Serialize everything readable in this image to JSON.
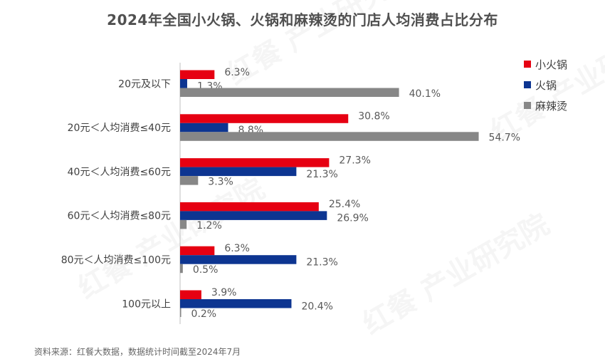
{
  "chart_data": {
    "type": "bar",
    "orientation": "horizontal",
    "title": "2024年全国小火锅、火锅和麻辣烫的门店人均消费占比分布",
    "categories": [
      "20元及以下",
      "20元＜人均消费≤40元",
      "40元＜人均消费≤60元",
      "60元＜人均消费≤80元",
      "80元＜人均消费≤100元",
      "100元以上"
    ],
    "series": [
      {
        "name": "小火锅",
        "color": "#E60012",
        "values": [
          6.3,
          30.8,
          27.3,
          25.4,
          6.3,
          3.9
        ]
      },
      {
        "name": "火锅",
        "color": "#0D3591",
        "values": [
          1.3,
          8.8,
          21.3,
          26.9,
          21.3,
          20.4
        ]
      },
      {
        "name": "麻辣烫",
        "color": "#878787",
        "values": [
          40.1,
          54.7,
          3.3,
          1.2,
          0.5,
          0.2
        ]
      }
    ],
    "value_suffix": "%",
    "xlim": [
      0,
      60
    ],
    "grid": false,
    "legend_position": "top-right"
  },
  "footer": "资料来源：红餐大数据，数据统计时间截至2024年7月",
  "watermark": "红餐 产业研究院"
}
